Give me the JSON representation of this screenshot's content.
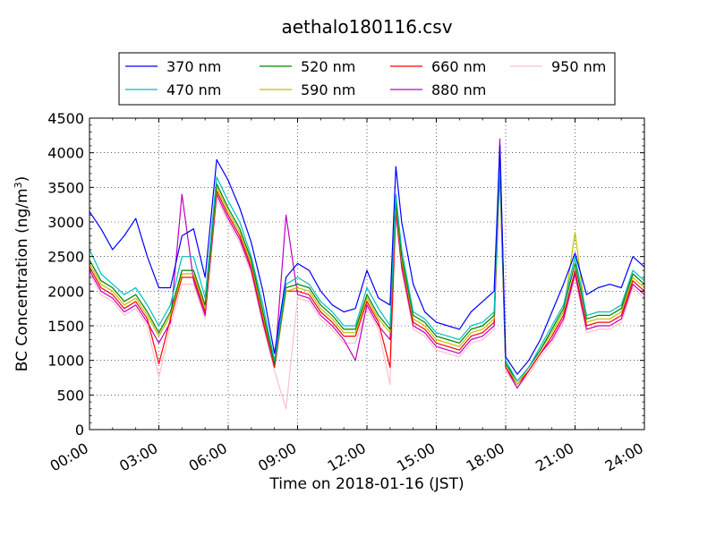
{
  "chart_data": {
    "type": "line",
    "title": "aethalo180116.csv",
    "xlabel": "Time on 2018-01-16 (JST)",
    "ylabel_main": "BC Concentration (ng/m",
    "ylabel_sup": "3",
    "ylabel_tail": ")",
    "xlim": [
      "00:00",
      "24:00"
    ],
    "ylim": [
      0,
      4500
    ],
    "grid": true,
    "legend_position": "top-center",
    "x_ticks": [
      "00:00",
      "03:00",
      "06:00",
      "09:00",
      "12:00",
      "15:00",
      "18:00",
      "21:00",
      "24:00"
    ],
    "y_ticks": [
      "0",
      "500",
      "1000",
      "1500",
      "2000",
      "2500",
      "3000",
      "3500",
      "4000",
      "4500"
    ],
    "x_hours": [
      0,
      0.5,
      1,
      1.5,
      2,
      2.5,
      3,
      3.5,
      4,
      4.5,
      5,
      5.5,
      6,
      6.5,
      7,
      7.5,
      8,
      8.5,
      9,
      9.5,
      10,
      10.5,
      11,
      11.5,
      12,
      12.5,
      13,
      13.25,
      13.5,
      14,
      14.5,
      15,
      15.5,
      16,
      16.5,
      17,
      17.5,
      17.75,
      18,
      18.5,
      19,
      19.5,
      20,
      20.5,
      21,
      21.5,
      22,
      22.5,
      23,
      23.5,
      24
    ],
    "series": [
      {
        "name": "370 nm",
        "color": "#0000ff",
        "values": [
          3150,
          2900,
          2600,
          2800,
          3050,
          2500,
          2050,
          2050,
          2800,
          2900,
          2200,
          3900,
          3600,
          3200,
          2700,
          2000,
          1100,
          2200,
          2400,
          2300,
          2000,
          1800,
          1700,
          1750,
          2300,
          1900,
          1800,
          3800,
          3000,
          2100,
          1700,
          1550,
          1500,
          1450,
          1700,
          1850,
          2000,
          4100,
          1050,
          800,
          1000,
          1300,
          1700,
          2100,
          2550,
          1950,
          2050,
          2100,
          2050,
          2500,
          2350
        ]
      },
      {
        "name": "470 nm",
        "color": "#00bfbf",
        "values": [
          2600,
          2250,
          2100,
          1950,
          2050,
          1800,
          1500,
          1800,
          2500,
          2500,
          1900,
          3650,
          3300,
          3000,
          2500,
          1800,
          1000,
          2100,
          2200,
          2100,
          1850,
          1700,
          1500,
          1500,
          2050,
          1750,
          1500,
          3400,
          2600,
          1700,
          1600,
          1400,
          1350,
          1300,
          1500,
          1550,
          1700,
          3900,
          1000,
          700,
          900,
          1200,
          1500,
          1800,
          2500,
          1650,
          1700,
          1700,
          1800,
          2300,
          2150
        ]
      },
      {
        "name": "520 nm",
        "color": "#008000",
        "values": [
          2450,
          2150,
          2050,
          1850,
          1950,
          1700,
          1400,
          1700,
          2300,
          2300,
          1800,
          3550,
          3200,
          2900,
          2450,
          1700,
          950,
          2050,
          2100,
          2050,
          1800,
          1650,
          1450,
          1450,
          1950,
          1650,
          1450,
          3300,
          2500,
          1650,
          1550,
          1350,
          1300,
          1250,
          1450,
          1500,
          1650,
          3850,
          950,
          700,
          900,
          1150,
          1450,
          1750,
          2400,
          1600,
          1650,
          1650,
          1750,
          2250,
          2100
        ]
      },
      {
        "name": "590 nm",
        "color": "#bfbf00",
        "values": [
          2400,
          2100,
          2000,
          1800,
          1900,
          1650,
          1350,
          1650,
          2250,
          2250,
          1750,
          3500,
          3150,
          2850,
          2400,
          1650,
          950,
          2000,
          2050,
          2000,
          1750,
          1600,
          1400,
          1400,
          1900,
          1600,
          1400,
          3250,
          2450,
          1600,
          1500,
          1300,
          1250,
          1200,
          1400,
          1450,
          1600,
          3800,
          950,
          650,
          900,
          1150,
          1400,
          1700,
          2850,
          1550,
          1600,
          1600,
          1700,
          2200,
          2050
        ]
      },
      {
        "name": "660 nm",
        "color": "#ff0000",
        "values": [
          2350,
          2050,
          1950,
          1750,
          1850,
          1600,
          950,
          1600,
          2200,
          2200,
          1700,
          3450,
          3100,
          2800,
          2350,
          1600,
          900,
          2000,
          2000,
          1950,
          1700,
          1550,
          1350,
          1350,
          1850,
          1550,
          900,
          3200,
          2400,
          1550,
          1450,
          1250,
          1200,
          1150,
          1350,
          1400,
          1550,
          3750,
          900,
          650,
          850,
          1100,
          1350,
          1650,
          2300,
          1500,
          1550,
          1550,
          1650,
          2150,
          2000
        ]
      },
      {
        "name": "880 nm",
        "color": "#bf00bf",
        "values": [
          2300,
          2000,
          1900,
          1700,
          1800,
          1550,
          1250,
          1550,
          3400,
          2150,
          1650,
          3400,
          3050,
          2750,
          2300,
          1550,
          900,
          3100,
          1950,
          1900,
          1650,
          1500,
          1300,
          1000,
          1800,
          1500,
          1300,
          3150,
          2350,
          1500,
          1400,
          1200,
          1150,
          1100,
          1300,
          1350,
          1500,
          4200,
          900,
          600,
          850,
          1100,
          1300,
          1600,
          2250,
          1450,
          1500,
          1500,
          1600,
          2100,
          1950
        ]
      },
      {
        "name": "950 nm",
        "color": "#ffc0cb",
        "values": [
          2250,
          1950,
          1850,
          1650,
          1750,
          1500,
          750,
          1500,
          2100,
          2100,
          1600,
          3350,
          3000,
          2700,
          2250,
          1500,
          850,
          300,
          1900,
          1850,
          1600,
          1450,
          1250,
          1250,
          1750,
          1450,
          650,
          3100,
          2300,
          1450,
          1350,
          1150,
          1100,
          1050,
          1250,
          1300,
          1450,
          3700,
          850,
          600,
          800,
          1050,
          1250,
          1550,
          2200,
          1400,
          1450,
          1450,
          1550,
          2050,
          1900
        ]
      }
    ]
  }
}
